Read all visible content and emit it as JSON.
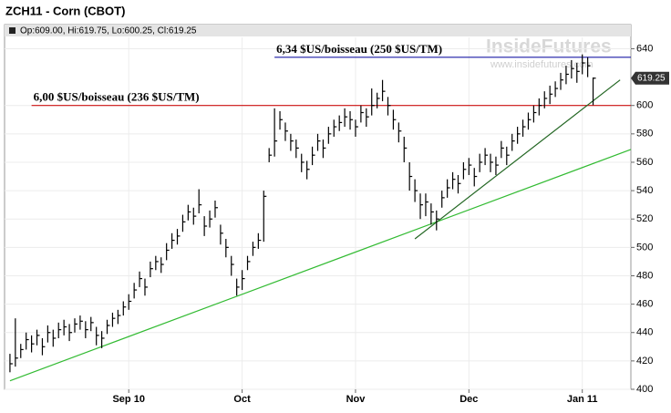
{
  "chart_data": {
    "type": "ohlc",
    "title": "ZCH11 - Corn (CBOT)",
    "info": "Op:609.00, Hi:619.75, Lo:600.25, Cl:619.25",
    "watermark": {
      "logo": "InsideFutures",
      "url": "www.insidefutures.com"
    },
    "color": "#000000",
    "grid": true,
    "ylim": [
      400,
      648
    ],
    "yticks": [
      400,
      420,
      440,
      460,
      480,
      500,
      520,
      540,
      560,
      580,
      600,
      640
    ],
    "xlim": [
      -1,
      115
    ],
    "xticks": [
      {
        "value": 22,
        "label": "Sep 10"
      },
      {
        "value": 43,
        "label": "Oct"
      },
      {
        "value": 64,
        "label": "Nov"
      },
      {
        "value": 85,
        "label": "Dec"
      },
      {
        "value": 106,
        "label": "Jan 11"
      }
    ],
    "last_price": 619.25,
    "high": [
      425,
      450,
      432,
      440,
      438,
      442,
      436,
      445,
      442,
      447,
      449,
      446,
      450,
      452,
      448,
      451,
      444,
      441,
      449,
      454,
      456,
      462,
      467,
      475,
      483,
      478,
      490,
      494,
      493,
      503,
      510,
      513,
      523,
      530,
      528,
      541,
      522,
      526,
      533,
      516,
      506,
      494,
      478,
      484,
      494,
      504,
      510,
      540,
      570,
      598,
      596,
      588,
      580,
      576,
      566,
      561,
      571,
      580,
      576,
      585,
      590,
      593,
      598,
      596,
      590,
      600,
      598,
      612,
      609,
      618,
      606,
      597,
      588,
      578,
      560,
      548,
      538,
      538,
      531,
      526,
      540,
      548,
      553,
      551,
      560,
      563,
      556,
      566,
      570,
      566,
      564,
      575,
      571,
      580,
      585,
      590,
      595,
      600,
      605,
      610,
      614,
      617,
      623,
      628,
      632,
      630,
      636,
      634,
      619.75
    ],
    "low": [
      412,
      416,
      422,
      428,
      426,
      431,
      424,
      433,
      430,
      436,
      438,
      434,
      440,
      442,
      436,
      441,
      431,
      429,
      439,
      444,
      446,
      452,
      456,
      464,
      472,
      466,
      479,
      484,
      482,
      491,
      499,
      502,
      511,
      519,
      516,
      524,
      508,
      514,
      521,
      502,
      493,
      480,
      466,
      470,
      484,
      494,
      499,
      504,
      560,
      564,
      583,
      575,
      568,
      563,
      553,
      548,
      558,
      568,
      563,
      573,
      578,
      582,
      585,
      583,
      578,
      588,
      585,
      593,
      598,
      603,
      593,
      583,
      574,
      560,
      540,
      532,
      520,
      522,
      516,
      512,
      528,
      535,
      541,
      538,
      548,
      551,
      543,
      553,
      558,
      553,
      551,
      563,
      558,
      568,
      573,
      578,
      583,
      588,
      593,
      598,
      601,
      606,
      611,
      615,
      619,
      616,
      622,
      620,
      600.25
    ],
    "close": [
      418,
      422,
      428,
      435,
      432,
      438,
      430,
      440,
      436,
      442,
      444,
      440,
      446,
      448,
      442,
      447,
      438,
      436,
      445,
      450,
      452,
      458,
      462,
      470,
      478,
      472,
      485,
      490,
      488,
      498,
      505,
      508,
      518,
      525,
      522,
      530,
      515,
      520,
      528,
      510,
      500,
      488,
      472,
      478,
      490,
      500,
      505,
      536,
      565,
      575,
      590,
      582,
      575,
      570,
      560,
      555,
      565,
      575,
      570,
      580,
      585,
      588,
      592,
      590,
      585,
      595,
      592,
      600,
      605,
      610,
      600,
      590,
      582,
      570,
      550,
      540,
      530,
      532,
      525,
      520,
      535,
      542,
      548,
      545,
      555,
      558,
      550,
      560,
      565,
      560,
      558,
      570,
      565,
      575,
      580,
      585,
      590,
      595,
      600,
      605,
      608,
      612,
      618,
      622,
      626,
      624,
      630,
      628,
      619.25
    ],
    "hlines": [
      {
        "value": 634,
        "label": "6,34 $US/boisseau (250 $US/TM)",
        "color": "#1a1aa6",
        "from": 49
      },
      {
        "value": 600,
        "label": "6,00 $US/boisseau (236 $US/TM)",
        "color": "#cc1111",
        "from": 4
      }
    ],
    "trendlines": [
      {
        "x": [
          0,
          115
        ],
        "y": [
          406,
          569
        ],
        "color": "#33bb33"
      },
      {
        "x": [
          75,
          113
        ],
        "y": [
          506,
          618
        ],
        "color": "#226622"
      }
    ]
  }
}
